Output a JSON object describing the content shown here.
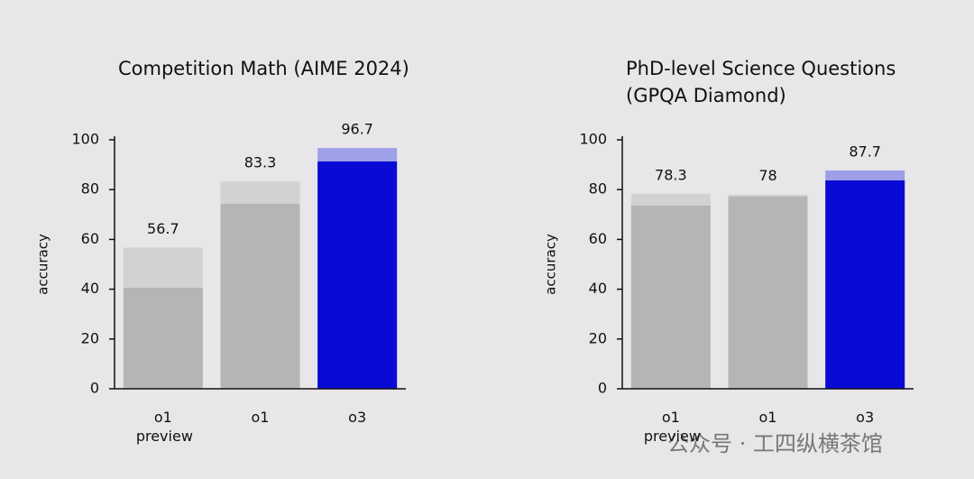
{
  "chart_data": [
    {
      "type": "bar",
      "title": "Competition Math (AIME 2024)",
      "ylabel": "accuracy",
      "categories": [
        "o1 preview",
        "o1",
        "o3"
      ],
      "series": [
        {
          "values": [
            56.7,
            83.3,
            96.7
          ],
          "colors": [
            "#d3d2d3",
            "#d3d2d3",
            "#9da0e8"
          ]
        },
        {
          "values": [
            40.6,
            74.3,
            91.3
          ],
          "colors": [
            "#b6b5b6",
            "#b6b5b6",
            "#0a0ad6"
          ]
        }
      ],
      "ylim": [
        0,
        100
      ],
      "yticks": [
        0,
        20,
        40,
        60,
        80,
        100
      ]
    },
    {
      "type": "bar",
      "title": "PhD-level Science Questions (GPQA Diamond)",
      "ylabel": "accuracy",
      "categories": [
        "o1 preview",
        "o1",
        "o3"
      ],
      "series": [
        {
          "values": [
            78.3,
            78.0,
            87.7
          ],
          "colors": [
            "#d3d2d3",
            "#d3d2d3",
            "#9da0e8"
          ]
        },
        {
          "values": [
            73.6,
            77.2,
            83.7
          ],
          "colors": [
            "#b6b5b6",
            "#b6b5b6",
            "#0a0ad6"
          ]
        }
      ],
      "ylim": [
        0,
        100
      ],
      "yticks": [
        0,
        20,
        40,
        60,
        80,
        100
      ]
    }
  ],
  "watermark": "公众号 · 工四纵横茶馆"
}
